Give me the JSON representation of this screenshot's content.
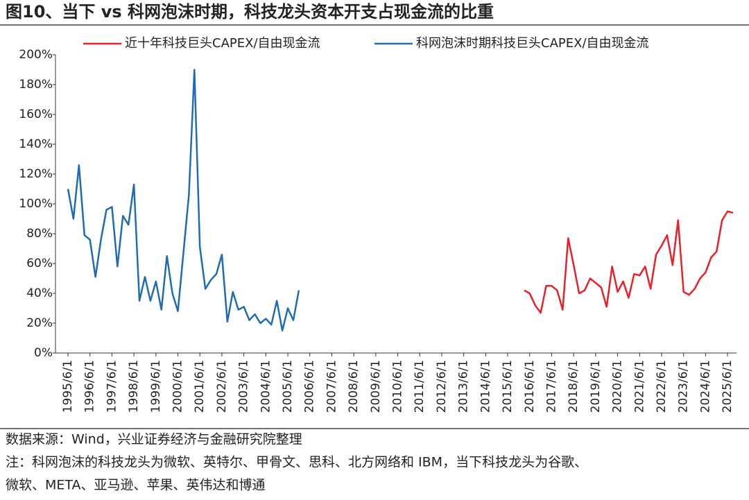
{
  "chart_data": {
    "type": "line",
    "title": "图10、当下 vs 科网泡沫时期，科技龙头资本开支占现金流的比重",
    "categories": [
      "1995/6/1",
      null,
      null,
      null,
      "1996/6/1",
      null,
      null,
      null,
      "1997/6/1",
      null,
      null,
      null,
      "1998/6/1",
      null,
      null,
      null,
      "1999/6/1",
      null,
      null,
      null,
      "2000/6/1",
      null,
      null,
      null,
      "2001/6/1",
      null,
      null,
      null,
      "2002/6/1",
      null,
      null,
      null,
      "2003/6/1",
      null,
      null,
      null,
      "2004/6/1",
      null,
      null,
      null,
      "2005/6/1",
      null,
      null,
      null,
      "2006/6/1",
      null,
      null,
      null,
      "2007/6/1",
      null,
      null,
      null,
      "2008/6/1",
      null,
      null,
      null,
      "2009/6/1",
      null,
      null,
      null,
      "2010/6/1",
      null,
      null,
      null,
      "2011/6/1",
      null,
      null,
      null,
      "2012/6/1",
      null,
      null,
      null,
      "2013/6/1",
      null,
      null,
      null,
      "2014/6/1",
      null,
      null,
      null,
      "2015/6/1",
      null,
      null,
      null,
      "2016/6/1",
      null,
      null,
      null,
      "2017/6/1",
      null,
      null,
      null,
      "2018/6/1",
      null,
      null,
      null,
      "2019/6/1",
      null,
      null,
      null,
      "2020/6/1",
      null,
      null,
      null,
      "2021/6/1",
      null,
      null,
      null,
      "2022/6/1",
      null,
      null,
      null,
      "2023/6/1",
      null,
      null,
      null,
      "2024/6/1",
      null,
      null,
      null,
      "2025/6/1",
      null
    ],
    "series": [
      {
        "name": "近十年科技巨头CAPEX/自由现金流",
        "color": "#e8202a",
        "values": [
          null,
          null,
          null,
          null,
          null,
          null,
          null,
          null,
          null,
          null,
          null,
          null,
          null,
          null,
          null,
          null,
          null,
          null,
          null,
          null,
          null,
          null,
          null,
          null,
          null,
          null,
          null,
          null,
          null,
          null,
          null,
          null,
          null,
          null,
          null,
          null,
          null,
          null,
          null,
          null,
          null,
          null,
          null,
          null,
          null,
          null,
          null,
          null,
          null,
          null,
          null,
          null,
          null,
          null,
          null,
          null,
          null,
          null,
          null,
          null,
          null,
          null,
          null,
          null,
          null,
          null,
          null,
          null,
          null,
          null,
          null,
          null,
          null,
          null,
          null,
          null,
          null,
          null,
          null,
          null,
          null,
          null,
          null,
          42,
          40,
          32,
          27,
          45,
          45,
          42,
          29,
          77,
          59,
          40,
          42,
          50,
          47,
          44,
          31,
          58,
          41,
          48,
          37,
          53,
          52,
          58,
          43,
          66,
          72,
          79,
          59,
          89,
          41,
          39,
          43,
          50,
          54,
          64,
          68,
          89,
          95,
          94
        ]
      },
      {
        "name": "科网泡沫时期科技巨头CAPEX/自由现金流",
        "color": "#1f6bb5",
        "values": [
          110,
          90,
          126,
          79,
          76,
          51,
          76,
          96,
          98,
          58,
          92,
          86,
          113,
          35,
          51,
          35,
          48,
          29,
          65,
          40,
          28,
          67,
          106,
          190,
          71,
          43,
          49,
          53,
          66,
          21,
          41,
          29,
          31,
          22,
          26,
          20,
          23,
          19,
          35,
          15,
          30,
          22,
          42,
          null,
          null,
          null,
          null,
          null,
          null,
          null,
          null,
          null,
          null,
          null,
          null,
          null,
          null,
          null,
          null,
          null,
          null,
          null,
          null,
          null,
          null,
          null,
          null,
          null,
          null,
          null,
          null,
          null,
          null,
          null,
          null,
          null,
          null,
          null,
          null,
          null,
          null,
          null,
          null,
          null,
          null,
          null,
          null,
          null,
          null,
          null,
          null,
          null,
          null,
          null,
          null,
          null,
          null,
          null,
          null,
          null,
          null,
          null,
          null,
          null,
          null,
          null,
          null,
          null,
          null,
          null,
          null,
          null,
          null,
          null,
          null,
          null,
          null,
          null,
          null,
          null,
          null,
          null
        ]
      }
    ],
    "ylim": [
      0,
      200
    ],
    "yticks": [
      {
        "value": 0,
        "label": "0%"
      },
      {
        "value": 20,
        "label": "20%"
      },
      {
        "value": 40,
        "label": "40%"
      },
      {
        "value": 60,
        "label": "60%"
      },
      {
        "value": 80,
        "label": "80%"
      },
      {
        "value": 100,
        "label": "100%"
      },
      {
        "value": 120,
        "label": "120%"
      },
      {
        "value": 140,
        "label": "140%"
      },
      {
        "value": 160,
        "label": "160%"
      },
      {
        "value": 180,
        "label": "180%"
      },
      {
        "value": 200,
        "label": "200%"
      }
    ],
    "grid": false,
    "legend": "top",
    "source": "数据来源：Wind，兴业证券经济与金融研究院整理",
    "note": [
      "注：科网泡沫的科技龙头为微软、英特尔、甲骨文、思科、北方网络和 IBM，当下科技龙头为谷歌、",
      "微软、META、亚马逊、苹果、英伟达和博通"
    ]
  }
}
